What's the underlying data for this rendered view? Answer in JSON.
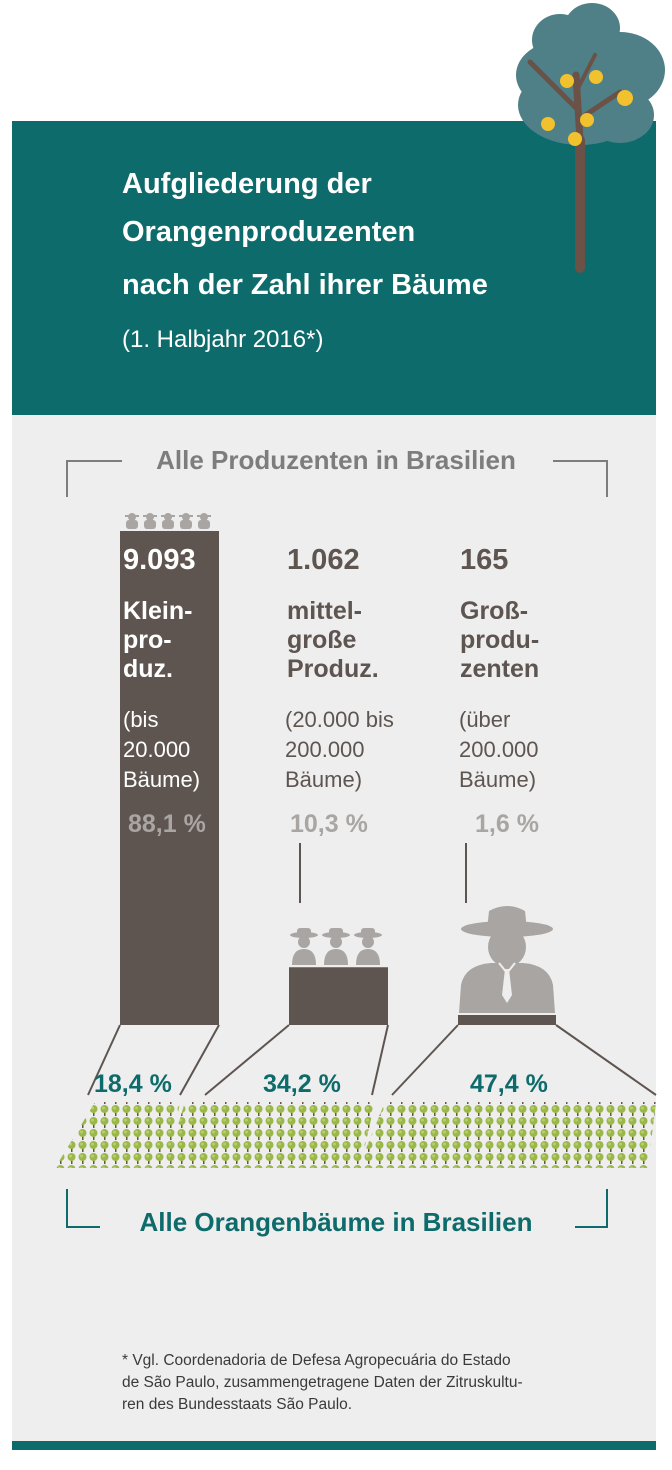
{
  "title_lines": [
    "Aufgliederung der",
    "Orangenproduzenten",
    "nach der Zahl ihrer Bäume"
  ],
  "subtitle": "(1. Halbjahr 2016*)",
  "section_top": "Alle Produzenten in Brasilien",
  "section_bottom": "Alle Orangenbäume in Brasilien",
  "categories": [
    {
      "count": "9.093",
      "label": "Klein-\npro-\nduz.",
      "range": "(bis\n20.000\nBäume)",
      "share_producers": "88,1 %",
      "share_trees": "18,4 %"
    },
    {
      "count": "1.062",
      "label": "mittel-\ngroße\nProduz.",
      "range": "(20.000 bis\n200.000\nBäume)",
      "share_producers": "10,3 %",
      "share_trees": "34,2 %"
    },
    {
      "count": "165",
      "label": "Groß-\nprodu-\nzenten",
      "range": "(über\n200.000\nBäume)",
      "share_producers": "1,6 %",
      "share_trees": "47,4 %"
    }
  ],
  "footnote_lines": [
    "*  Vgl. Coordenadoria de Defesa Agropecuária do Estado",
    "de São Paulo, zusammengetragene Daten der Zitruskultu-",
    "ren des Bundesstaats São Paulo."
  ],
  "colors": {
    "teal": "#0e6b6b",
    "dark_bar": "#5e5550",
    "grey_text": "#7d7d7d",
    "panel": "#eeeeee",
    "figure_grey": "#a9a5a3",
    "tree_green": "#9ab84a",
    "trunk": "#6b5146",
    "leaf_blue": "#4f7f87",
    "orange_fruit": "#f2c12e"
  },
  "chart_data": {
    "type": "bar",
    "categories": [
      "Kleinproduz.",
      "mittelgroße Produz.",
      "Großproduzenten"
    ],
    "series": [
      {
        "name": "Alle Produzenten in Brasilien",
        "values": [
          88.1,
          10.3,
          1.6
        ],
        "counts": [
          9093,
          1062,
          165
        ]
      },
      {
        "name": "Alle Orangenbäume in Brasilien",
        "values": [
          18.4,
          34.2,
          47.4
        ]
      }
    ],
    "unit": "%"
  }
}
